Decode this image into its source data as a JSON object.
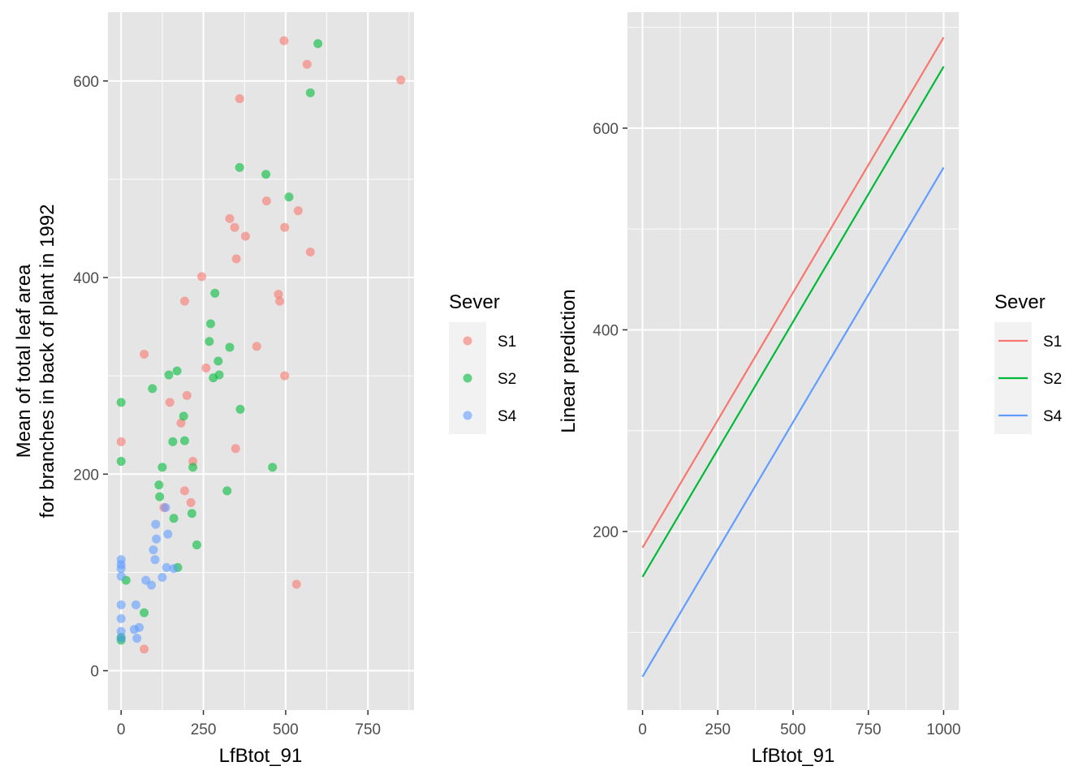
{
  "colors": {
    "panel_bg": "#e5e5e5",
    "grid": "#ffffff",
    "tick": "#333333",
    "S1": "#f8766d",
    "S2": "#00ba38",
    "S4": "#619cff"
  },
  "chart_data": [
    {
      "type": "scatter",
      "xlabel": "LfBtot_91",
      "ylabel_lines": [
        "Mean of total leaf area",
        "for branches in back of plant in 1992"
      ],
      "xlim": [
        -40,
        890
      ],
      "ylim": [
        -40,
        670
      ],
      "x_ticks": [
        0,
        250,
        500,
        750
      ],
      "x_tick_labels": [
        "0",
        "250",
        "500",
        "750"
      ],
      "y_ticks": [
        0,
        200,
        400,
        600
      ],
      "y_tick_labels": [
        "0",
        "200",
        "400",
        "600"
      ],
      "grid": true,
      "point_alpha": 0.6,
      "legend": {
        "title": "Sever",
        "position": "right",
        "entries": [
          "S1",
          "S2",
          "S4"
        ]
      },
      "series": [
        {
          "name": "S1",
          "points": [
            [
              0,
              233
            ],
            [
              70,
              322
            ],
            [
              70,
              22
            ],
            [
              130,
              166
            ],
            [
              148,
              273
            ],
            [
              182,
              252
            ],
            [
              193,
              183
            ],
            [
              193,
              376
            ],
            [
              200,
              280
            ],
            [
              212,
              171
            ],
            [
              218,
              213
            ],
            [
              245,
              401
            ],
            [
              258,
              308
            ],
            [
              330,
              460
            ],
            [
              345,
              451
            ],
            [
              348,
              226
            ],
            [
              350,
              419
            ],
            [
              360,
              582
            ],
            [
              378,
              442
            ],
            [
              412,
              330
            ],
            [
              442,
              478
            ],
            [
              478,
              383
            ],
            [
              482,
              376
            ],
            [
              495,
              641
            ],
            [
              497,
              451
            ],
            [
              497,
              300
            ],
            [
              533,
              88
            ],
            [
              538,
              468
            ],
            [
              565,
              617
            ],
            [
              575,
              426
            ],
            [
              850,
              601
            ]
          ]
        },
        {
          "name": "S2",
          "points": [
            [
              0,
              273
            ],
            [
              0,
              213
            ],
            [
              0,
              31
            ],
            [
              0,
              34
            ],
            [
              15,
              92
            ],
            [
              70,
              59
            ],
            [
              95,
              287
            ],
            [
              115,
              189
            ],
            [
              117,
              177
            ],
            [
              125,
              207
            ],
            [
              145,
              301
            ],
            [
              157,
              233
            ],
            [
              160,
              155
            ],
            [
              170,
              305
            ],
            [
              172,
              105
            ],
            [
              190,
              259
            ],
            [
              193,
              234
            ],
            [
              215,
              160
            ],
            [
              218,
              207
            ],
            [
              230,
              128
            ],
            [
              268,
              335
            ],
            [
              272,
              353
            ],
            [
              280,
              298
            ],
            [
              285,
              384
            ],
            [
              295,
              315
            ],
            [
              298,
              301
            ],
            [
              322,
              183
            ],
            [
              330,
              329
            ],
            [
              360,
              512
            ],
            [
              362,
              266
            ],
            [
              440,
              505
            ],
            [
              460,
              207
            ],
            [
              510,
              482
            ],
            [
              575,
              588
            ],
            [
              598,
              638
            ]
          ]
        },
        {
          "name": "S4",
          "points": [
            [
              0,
              113
            ],
            [
              0,
              108
            ],
            [
              0,
              104
            ],
            [
              0,
              96
            ],
            [
              0,
              67
            ],
            [
              0,
              53
            ],
            [
              0,
              40
            ],
            [
              0,
              33
            ],
            [
              40,
              42
            ],
            [
              45,
              67
            ],
            [
              48,
              33
            ],
            [
              55,
              44
            ],
            [
              75,
              92
            ],
            [
              92,
              87
            ],
            [
              98,
              123
            ],
            [
              103,
              113
            ],
            [
              105,
              149
            ],
            [
              107,
              134
            ],
            [
              125,
              95
            ],
            [
              135,
              166
            ],
            [
              138,
              105
            ],
            [
              142,
              139
            ],
            [
              160,
              104
            ]
          ]
        }
      ]
    },
    {
      "type": "line",
      "xlabel": "LfBtot_91",
      "ylabel": "Linear prediction",
      "xlim": [
        -50,
        1050
      ],
      "ylim": [
        23,
        715
      ],
      "x_ticks": [
        0,
        250,
        500,
        750,
        1000
      ],
      "x_tick_labels": [
        "0",
        "250",
        "500",
        "750",
        "1000"
      ],
      "y_ticks": [
        200,
        400,
        600
      ],
      "y_tick_labels": [
        "200",
        "400",
        "600"
      ],
      "grid": true,
      "legend": {
        "title": "Sever",
        "position": "right",
        "entries": [
          "S1",
          "S2",
          "S4"
        ]
      },
      "series": [
        {
          "name": "S1",
          "x": [
            0,
            1000
          ],
          "y": [
            184,
            690
          ]
        },
        {
          "name": "S2",
          "x": [
            0,
            1000
          ],
          "y": [
            155,
            661
          ]
        },
        {
          "name": "S4",
          "x": [
            0,
            1000
          ],
          "y": [
            56,
            561
          ]
        }
      ]
    }
  ]
}
